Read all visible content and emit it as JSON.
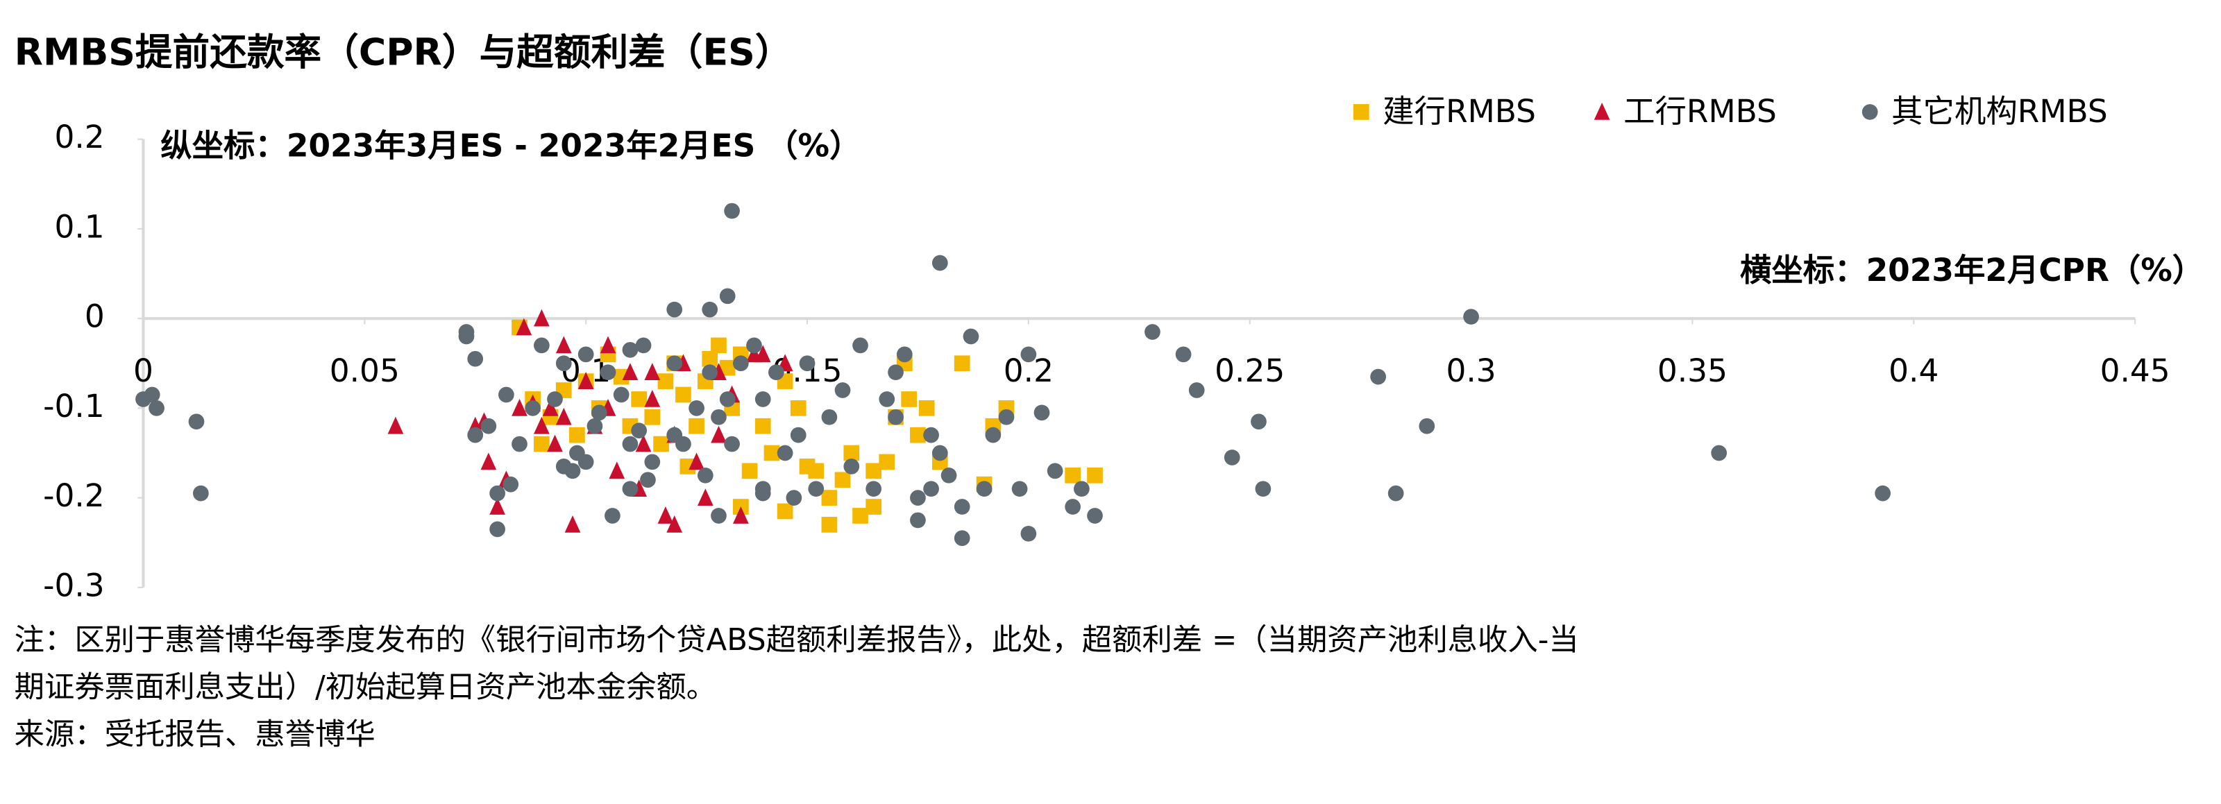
{
  "chart_data": {
    "type": "scatter",
    "title": "RMBS提前还款率（CPR）与超额利差（ES）",
    "y_axis_label": "纵坐标：2023年3月ES - 2023年2月ES （%）",
    "x_axis_label": "横坐标：2023年2月CPR（%）",
    "notes": [
      "注：区别于惠誉博华每季度发布的《银行间市场个贷ABS超额利差报告》，此处，超额利差 =（当期资产池利息收入-当",
      "期证券票面利息支出）/初始起算日资产池本金余额。",
      "来源：受托报告、惠誉博华"
    ],
    "xlim": [
      0,
      0.45
    ],
    "xticks": [
      0,
      0.05,
      0.1,
      0.15,
      0.2,
      0.25,
      0.3,
      0.35,
      0.4,
      0.45
    ],
    "ylim": [
      -0.3,
      0.2
    ],
    "yticks": [
      -0.3,
      -0.2,
      -0.1,
      0,
      0.1,
      0.2
    ],
    "legend": "top-right",
    "series": [
      {
        "name": "建行RMBS",
        "color": "#f5b800",
        "marker": "square",
        "x": [
          0.085,
          0.088,
          0.09,
          0.092,
          0.095,
          0.098,
          0.1,
          0.103,
          0.105,
          0.108,
          0.11,
          0.112,
          0.115,
          0.117,
          0.118,
          0.12,
          0.122,
          0.123,
          0.125,
          0.127,
          0.128,
          0.13,
          0.132,
          0.133,
          0.135,
          0.135,
          0.137,
          0.14,
          0.142,
          0.145,
          0.148,
          0.15,
          0.152,
          0.155,
          0.155,
          0.158,
          0.16,
          0.162,
          0.165,
          0.168,
          0.17,
          0.172,
          0.173,
          0.175,
          0.177,
          0.18,
          0.19,
          0.192,
          0.195,
          0.185,
          0.21,
          0.215,
          0.165,
          0.145
        ],
        "values": [
          -0.01,
          -0.09,
          -0.14,
          -0.11,
          -0.08,
          -0.13,
          -0.07,
          -0.1,
          -0.04,
          -0.065,
          -0.12,
          -0.09,
          -0.11,
          -0.14,
          -0.07,
          -0.05,
          -0.085,
          -0.165,
          -0.12,
          -0.07,
          -0.045,
          -0.03,
          -0.055,
          -0.1,
          -0.21,
          -0.04,
          -0.17,
          -0.12,
          -0.15,
          -0.07,
          -0.1,
          -0.165,
          -0.17,
          -0.2,
          -0.23,
          -0.18,
          -0.15,
          -0.22,
          -0.17,
          -0.16,
          -0.11,
          -0.05,
          -0.09,
          -0.13,
          -0.1,
          -0.16,
          -0.185,
          -0.12,
          -0.1,
          -0.05,
          -0.175,
          -0.175,
          -0.21,
          -0.215
        ]
      },
      {
        "name": "工行RMBS",
        "color": "#c8102e",
        "marker": "triangle",
        "x": [
          0.057,
          0.075,
          0.077,
          0.078,
          0.08,
          0.082,
          0.085,
          0.086,
          0.088,
          0.09,
          0.09,
          0.092,
          0.093,
          0.095,
          0.095,
          0.097,
          0.1,
          0.102,
          0.105,
          0.105,
          0.107,
          0.11,
          0.112,
          0.113,
          0.115,
          0.118,
          0.12,
          0.12,
          0.122,
          0.125,
          0.127,
          0.13,
          0.13,
          0.133,
          0.135,
          0.138,
          0.14,
          0.145,
          0.115
        ],
        "values": [
          -0.12,
          -0.12,
          -0.115,
          -0.16,
          -0.21,
          -0.18,
          -0.1,
          -0.01,
          -0.095,
          -0.12,
          0,
          -0.1,
          -0.14,
          -0.11,
          -0.03,
          -0.23,
          -0.07,
          -0.12,
          -0.03,
          -0.1,
          -0.17,
          -0.06,
          -0.19,
          -0.14,
          -0.09,
          -0.22,
          -0.23,
          -0.13,
          -0.05,
          -0.16,
          -0.2,
          -0.13,
          -0.06,
          -0.085,
          -0.22,
          -0.04,
          -0.04,
          -0.05,
          -0.06
        ]
      },
      {
        "name": "其它机构RMBS",
        "color": "#5f6a72",
        "marker": "circle",
        "x": [
          0,
          0.002,
          0.003,
          0.012,
          0.013,
          0.073,
          0.073,
          0.075,
          0.075,
          0.078,
          0.08,
          0.08,
          0.082,
          0.083,
          0.085,
          0.088,
          0.09,
          0.093,
          0.095,
          0.095,
          0.097,
          0.098,
          0.1,
          0.1,
          0.102,
          0.103,
          0.105,
          0.106,
          0.108,
          0.11,
          0.11,
          0.112,
          0.113,
          0.114,
          0.115,
          0.11,
          0.12,
          0.12,
          0.122,
          0.125,
          0.127,
          0.128,
          0.13,
          0.13,
          0.132,
          0.133,
          0.135,
          0.138,
          0.14,
          0.14,
          0.143,
          0.145,
          0.147,
          0.148,
          0.15,
          0.152,
          0.155,
          0.158,
          0.16,
          0.162,
          0.165,
          0.168,
          0.17,
          0.172,
          0.175,
          0.178,
          0.18,
          0.182,
          0.185,
          0.187,
          0.19,
          0.192,
          0.195,
          0.198,
          0.2,
          0.2,
          0.203,
          0.206,
          0.21,
          0.212,
          0.215,
          0.12,
          0.128,
          0.132,
          0.133,
          0.18,
          0.228,
          0.235,
          0.238,
          0.246,
          0.252,
          0.253,
          0.279,
          0.283,
          0.29,
          0.3,
          0.356,
          0.393,
          0.185,
          0.175,
          0.14,
          0.17,
          0.178
        ],
        "values": [
          -0.09,
          -0.085,
          -0.1,
          -0.115,
          -0.195,
          -0.015,
          -0.02,
          -0.045,
          -0.13,
          -0.12,
          -0.195,
          -0.235,
          -0.085,
          -0.185,
          -0.14,
          -0.1,
          -0.03,
          -0.09,
          -0.05,
          -0.165,
          -0.17,
          -0.15,
          -0.04,
          -0.16,
          -0.12,
          -0.105,
          -0.06,
          -0.22,
          -0.085,
          -0.14,
          -0.19,
          -0.125,
          -0.03,
          -0.18,
          -0.16,
          -0.035,
          -0.05,
          -0.13,
          -0.14,
          -0.1,
          -0.175,
          -0.06,
          -0.11,
          -0.22,
          -0.09,
          -0.14,
          -0.05,
          -0.03,
          -0.09,
          -0.195,
          -0.06,
          -0.15,
          -0.2,
          -0.13,
          -0.05,
          -0.19,
          -0.11,
          -0.08,
          -0.165,
          -0.03,
          -0.19,
          -0.09,
          -0.11,
          -0.04,
          -0.2,
          -0.13,
          -0.15,
          -0.175,
          -0.21,
          -0.02,
          -0.19,
          -0.13,
          -0.11,
          -0.19,
          -0.04,
          -0.24,
          -0.105,
          -0.17,
          -0.21,
          -0.19,
          -0.22,
          0.01,
          0.01,
          0.025,
          0.12,
          0.062,
          -0.015,
          -0.04,
          -0.08,
          -0.155,
          -0.115,
          -0.19,
          -0.065,
          -0.195,
          -0.12,
          0.002,
          -0.15,
          -0.195,
          -0.245,
          -0.225,
          -0.19,
          -0.06,
          -0.19
        ]
      }
    ]
  }
}
